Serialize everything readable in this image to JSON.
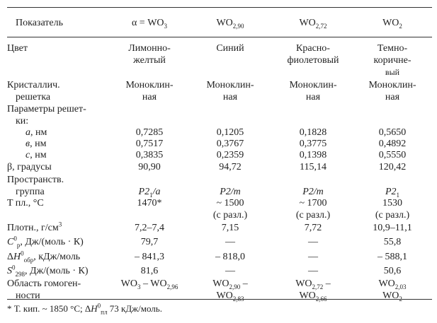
{
  "header": {
    "label": "Показатель",
    "columns": [
      [
        {
          "t": "α = WO"
        },
        {
          "sub": "3"
        }
      ],
      [
        {
          "t": "WO"
        },
        {
          "sub": "2,90"
        }
      ],
      [
        {
          "t": "WO"
        },
        {
          "sub": "2,72"
        }
      ],
      [
        {
          "t": "WO"
        },
        {
          "sub": "2"
        }
      ]
    ]
  },
  "rows": [
    {
      "label": [
        [
          {
            "t": "Цвет"
          }
        ]
      ],
      "cells": [
        [
          [
            {
              "t": "Лимонно-"
            }
          ],
          [
            {
              "t": "желтый"
            }
          ]
        ],
        [
          [
            {
              "t": "Синий"
            }
          ]
        ],
        [
          [
            {
              "t": "Красно-"
            }
          ],
          [
            {
              "t": "фиолетовый"
            }
          ]
        ],
        [
          [
            {
              "t": "Темно-"
            }
          ],
          [
            {
              "t": "коричне-"
            }
          ],
          [
            {
              "t": "вый"
            }
          ]
        ]
      ]
    },
    {
      "label": [
        [
          {
            "t": "Кристаллич."
          }
        ],
        [
          {
            "t": "решетка"
          }
        ]
      ],
      "cells": [
        [
          [
            {
              "t": "Моноклин-"
            }
          ],
          [
            {
              "t": "ная"
            }
          ]
        ],
        [
          [
            {
              "t": "Моноклин-"
            }
          ],
          [
            {
              "t": "ная"
            }
          ]
        ],
        [
          [
            {
              "t": "Моноклин-"
            }
          ],
          [
            {
              "t": "ная"
            }
          ]
        ],
        [
          [
            {
              "t": "Моноклин-"
            }
          ],
          [
            {
              "t": "ная"
            }
          ]
        ]
      ]
    },
    {
      "label": [
        [
          {
            "t": "Параметры  решет-"
          }
        ],
        [
          {
            "t": "ки:"
          }
        ]
      ],
      "cells": []
    },
    {
      "label": [
        [
          {
            "i": "a"
          },
          {
            "t": ",  нм"
          }
        ]
      ],
      "cells": [
        [
          [
            {
              "t": "0,7285"
            }
          ]
        ],
        [
          [
            {
              "t": "0,1205"
            }
          ]
        ],
        [
          [
            {
              "t": "0,1828"
            }
          ]
        ],
        [
          [
            {
              "t": "0,5650"
            }
          ]
        ]
      ]
    },
    {
      "label": [
        [
          {
            "i": "в"
          },
          {
            "t": ",  нм"
          }
        ]
      ],
      "cells": [
        [
          [
            {
              "t": "0,7517"
            }
          ]
        ],
        [
          [
            {
              "t": "0,3767"
            }
          ]
        ],
        [
          [
            {
              "t": "0,3775"
            }
          ]
        ],
        [
          [
            {
              "t": "0,4892"
            }
          ]
        ]
      ]
    },
    {
      "label": [
        [
          {
            "i": "c"
          },
          {
            "t": ",  нм"
          }
        ]
      ],
      "cells": [
        [
          [
            {
              "t": "0,3835"
            }
          ]
        ],
        [
          [
            {
              "t": "0,2359"
            }
          ]
        ],
        [
          [
            {
              "t": "0,1398"
            }
          ]
        ],
        [
          [
            {
              "t": "0,5550"
            }
          ]
        ]
      ]
    },
    {
      "label": [
        [
          {
            "t": "β,  градусы"
          }
        ]
      ],
      "cells": [
        [
          [
            {
              "t": "90,90"
            }
          ]
        ],
        [
          [
            {
              "t": "94,72"
            }
          ]
        ],
        [
          [
            {
              "t": "115,14"
            }
          ]
        ],
        [
          [
            {
              "t": "120,42"
            }
          ]
        ]
      ]
    },
    {
      "label": [
        [
          {
            "t": "Пространств."
          }
        ],
        [
          {
            "t": "группа"
          }
        ]
      ],
      "cells": [
        [
          [],
          [
            {
              "i": "P"
            },
            {
              "i": "2"
            },
            {
              "sub": "1"
            },
            {
              "i": "/a"
            }
          ]
        ],
        [
          [],
          [
            {
              "i": "P2/m"
            }
          ]
        ],
        [
          [],
          [
            {
              "i": "P2/m"
            }
          ]
        ],
        [
          [],
          [
            {
              "i": "P"
            },
            {
              "i": "2"
            },
            {
              "sub": "1"
            }
          ]
        ]
      ]
    },
    {
      "label": [
        [
          {
            "t": "T  пл.,  °C"
          }
        ]
      ],
      "cells": [
        [
          [
            {
              "t": "1470*"
            }
          ]
        ],
        [
          [
            {
              "t": "~ 1500"
            }
          ],
          [
            {
              "t": "(с  разл.)"
            }
          ]
        ],
        [
          [
            {
              "t": "~ 1700"
            }
          ],
          [
            {
              "t": "(с  разл.)"
            }
          ]
        ],
        [
          [
            {
              "t": "1530"
            }
          ],
          [
            {
              "t": "(с  разл.)"
            }
          ]
        ]
      ]
    },
    {
      "label": [
        [
          {
            "t": "Плотн., г/см"
          },
          {
            "sup": "3"
          }
        ]
      ],
      "cells": [
        [
          [
            {
              "t": "7,2–7,4"
            }
          ]
        ],
        [
          [
            {
              "t": "7,15"
            }
          ]
        ],
        [
          [
            {
              "t": "7,72"
            }
          ]
        ],
        [
          [
            {
              "t": "10,9–11,1"
            }
          ]
        ]
      ]
    },
    {
      "label": [
        [
          {
            "i": "C"
          },
          {
            "sup": "0"
          },
          {
            "sub": "p"
          },
          {
            "t": ",  Дж/(моль · К)"
          }
        ]
      ],
      "cells": [
        [
          [
            {
              "t": "79,7"
            }
          ]
        ],
        [
          [
            {
              "t": "—"
            }
          ]
        ],
        [
          [
            {
              "t": "—"
            }
          ]
        ],
        [
          [
            {
              "t": "55,8"
            }
          ]
        ]
      ]
    },
    {
      "label": [
        [
          {
            "t": "Δ"
          },
          {
            "i": "H"
          },
          {
            "sup": "0"
          },
          {
            "sub": "обр"
          },
          {
            "t": ",  кДж/моль"
          }
        ]
      ],
      "cells": [
        [
          [
            {
              "t": "– 841,3"
            }
          ]
        ],
        [
          [
            {
              "t": "– 818,0"
            }
          ]
        ],
        [
          [
            {
              "t": "—"
            }
          ]
        ],
        [
          [
            {
              "t": "– 588,1"
            }
          ]
        ]
      ]
    },
    {
      "label": [
        [
          {
            "i": "S"
          },
          {
            "sup": "0"
          },
          {
            "sub": "298"
          },
          {
            "t": ",  Дж/(моль · К)"
          }
        ]
      ],
      "cells": [
        [
          [
            {
              "t": "81,6"
            }
          ]
        ],
        [
          [
            {
              "t": "—"
            }
          ]
        ],
        [
          [
            {
              "t": "—"
            }
          ]
        ],
        [
          [
            {
              "t": "50,6"
            }
          ]
        ]
      ]
    },
    {
      "label": [
        [
          {
            "t": "Область  гомоген-"
          }
        ],
        [
          {
            "t": "ности"
          }
        ]
      ],
      "cells": [
        [
          [
            {
              "t": "WO"
            },
            {
              "sub": "3"
            },
            {
              "t": " – WO"
            },
            {
              "sub": "2,96"
            }
          ]
        ],
        [
          [
            {
              "t": "WO"
            },
            {
              "sub": "2,90"
            },
            {
              "t": " –"
            }
          ],
          [
            {
              "t": "WO"
            },
            {
              "sub": "2,83"
            }
          ]
        ],
        [
          [
            {
              "t": "WO"
            },
            {
              "sub": "2,72"
            },
            {
              "t": " –"
            }
          ],
          [
            {
              "t": "WO"
            },
            {
              "sub": "2,66"
            }
          ]
        ],
        [
          [
            {
              "t": "WO"
            },
            {
              "sub": "2,03"
            }
          ],
          [
            {
              "t": "WO"
            },
            {
              "sub": "2"
            }
          ]
        ]
      ]
    }
  ],
  "footnote": [
    {
      "t": "*  Т.  кип.  ~ 1850 °C;  Δ"
    },
    {
      "i": "H"
    },
    {
      "sup": "0"
    },
    {
      "sub": "пл"
    },
    {
      "t": "  73  кДж/моль."
    }
  ]
}
